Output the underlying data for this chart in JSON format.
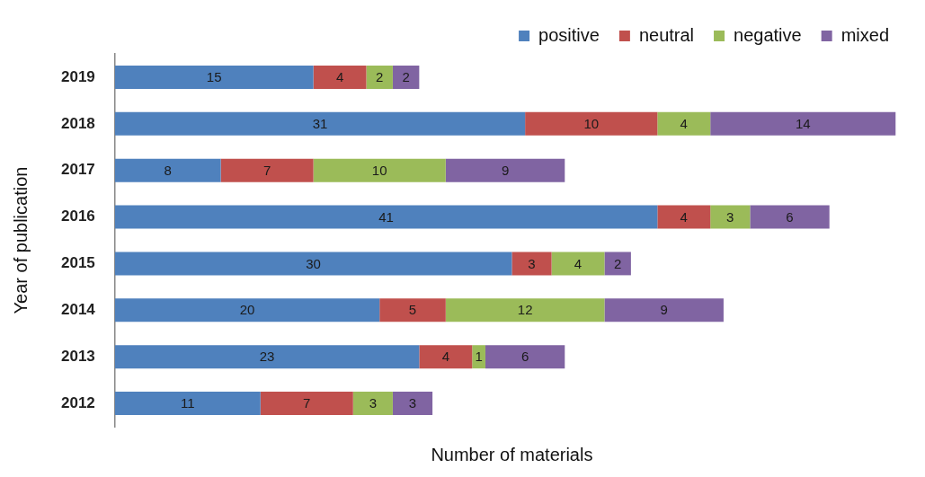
{
  "chart_data": {
    "type": "bar",
    "orientation": "horizontal",
    "stacked": true,
    "xlabel": "Number of materials",
    "ylabel": "Year of publication",
    "categories": [
      "2019",
      "2018",
      "2017",
      "2016",
      "2015",
      "2014",
      "2013",
      "2012"
    ],
    "series": [
      {
        "name": "positive",
        "color": "#4f81bd",
        "values": [
          15,
          31,
          8,
          41,
          30,
          20,
          23,
          11
        ]
      },
      {
        "name": "neutral",
        "color": "#c0504d",
        "values": [
          4,
          10,
          7,
          4,
          3,
          5,
          4,
          7
        ]
      },
      {
        "name": "negative",
        "color": "#9bbb59",
        "values": [
          2,
          4,
          10,
          3,
          4,
          12,
          1,
          3
        ]
      },
      {
        "name": "mixed",
        "color": "#8064a2",
        "values": [
          2,
          14,
          9,
          6,
          2,
          9,
          6,
          3
        ]
      }
    ],
    "data_labels": true,
    "legend": "top right",
    "grid": false,
    "tick_labels": "y"
  }
}
